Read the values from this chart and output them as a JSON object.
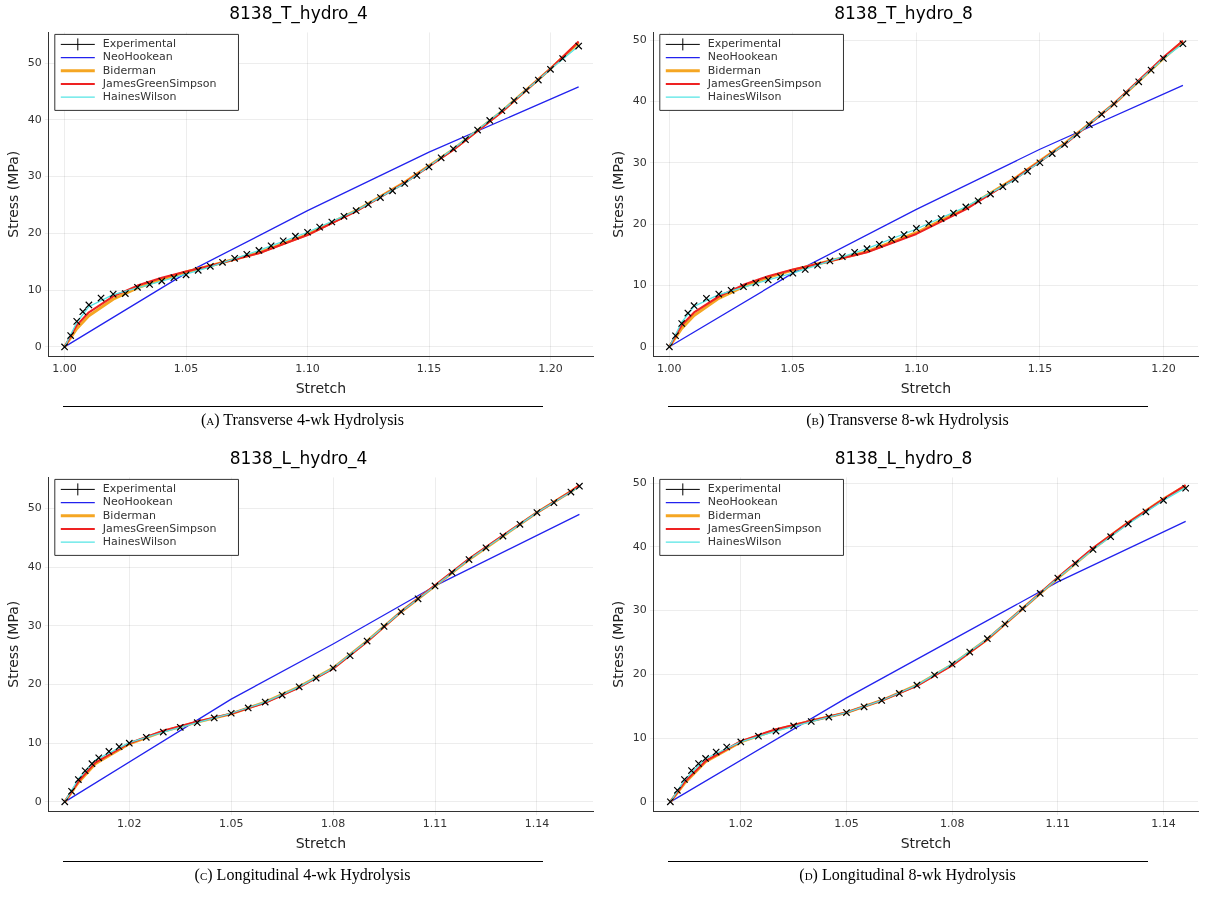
{
  "chart_data": [
    {
      "type": "line",
      "title": "8138_T_hydro_4",
      "xlabel": "Stretch",
      "ylabel": "Stress (MPa)",
      "xlim": [
        0.9935,
        1.2175
      ],
      "ylim": [
        -1.6,
        55.4
      ],
      "xticks": [
        {
          "value": 1,
          "label": "1.00"
        },
        1.05,
        {
          "value": 1.1,
          "label": "1.10"
        },
        1.15,
        {
          "value": 1.2,
          "label": "1.20"
        }
      ],
      "yticks": [
        0,
        10,
        20,
        30,
        40,
        50
      ],
      "grid": true,
      "legend": "top left",
      "line_style": "solid",
      "annotations": [
        "(a) Transverse 4-wk Hydrolysis"
      ],
      "series": [
        {
          "name": "NeoHookean",
          "color": "#2222ee",
          "marker": "none",
          "x": [
            1,
            1.05,
            1.1,
            1.15,
            1.2116
          ],
          "values": [
            0,
            13.0,
            24.0,
            34.3,
            45.8
          ]
        },
        {
          "name": "Biderman",
          "color": "#f5a623",
          "marker": "none",
          "x": [
            1,
            1.005,
            1.01,
            1.02,
            1.03,
            1.04,
            1.05,
            1.06,
            1.08,
            1.1,
            1.12,
            1.14,
            1.16,
            1.18,
            1.2,
            1.2116
          ],
          "values": [
            0,
            3.2,
            5.5,
            8.4,
            10.4,
            11.9,
            13.2,
            14.3,
            16.6,
            19.8,
            24.0,
            29.0,
            34.8,
            41.5,
            49.0,
            53.6
          ]
        },
        {
          "name": "JamesGreenSimpson",
          "color": "#ee2222",
          "marker": "none",
          "x": [
            1,
            1.005,
            1.01,
            1.02,
            1.03,
            1.04,
            1.05,
            1.06,
            1.08,
            1.1,
            1.12,
            1.14,
            1.16,
            1.18,
            1.2,
            1.2116
          ],
          "values": [
            0,
            3.8,
            6.1,
            8.9,
            10.8,
            12.2,
            13.3,
            14.3,
            16.5,
            19.7,
            23.9,
            28.9,
            34.7,
            41.4,
            49.0,
            53.8
          ]
        },
        {
          "name": "HainesWilson",
          "color": "#55e5e5",
          "marker": "none",
          "x": [
            1,
            1.005,
            1.01,
            1.02,
            1.03,
            1.04,
            1.05,
            1.06,
            1.08,
            1.1,
            1.12,
            1.14,
            1.16,
            1.18,
            1.2,
            1.2116
          ],
          "values": [
            0,
            4.3,
            7.1,
            9.2,
            10.4,
            11.6,
            12.8,
            14.1,
            17.0,
            20.2,
            24.0,
            28.8,
            34.9,
            41.6,
            48.9,
            53.0
          ]
        },
        {
          "name": "Experimental",
          "type": "scatter",
          "color": "#000000",
          "marker": "cross",
          "x": [
            1,
            1.0025,
            1.005,
            1.0075,
            1.01,
            1.015,
            1.02,
            1.025,
            1.03,
            1.035,
            1.04,
            1.045,
            1.05,
            1.055,
            1.06,
            1.065,
            1.07,
            1.075,
            1.08,
            1.085,
            1.09,
            1.095,
            1.1,
            1.105,
            1.11,
            1.115,
            1.12,
            1.125,
            1.13,
            1.135,
            1.14,
            1.145,
            1.15,
            1.155,
            1.16,
            1.165,
            1.17,
            1.175,
            1.18,
            1.185,
            1.19,
            1.195,
            1.2,
            1.205,
            1.2116
          ],
          "values": [
            0,
            2,
            4.5,
            6.2,
            7.4,
            8.6,
            9.3,
            9.4,
            10.5,
            11.0,
            11.6,
            12.2,
            12.7,
            13.5,
            14.2,
            14.9,
            15.6,
            16.3,
            17.0,
            17.8,
            18.7,
            19.5,
            20.2,
            21.1,
            22.0,
            23.0,
            24.0,
            25.1,
            26.3,
            27.5,
            28.8,
            30.2,
            31.7,
            33.3,
            34.9,
            36.5,
            38.2,
            39.9,
            41.6,
            43.4,
            45.2,
            47.0,
            48.9,
            50.8,
            53.0
          ]
        }
      ]
    },
    {
      "type": "line",
      "title": "8138_T_hydro_8",
      "xlabel": "Stretch",
      "ylabel": "Stress (MPa)",
      "xlim": [
        0.9937,
        1.214
      ],
      "ylim": [
        -1.5,
        51.25
      ],
      "xticks": [
        {
          "value": 1,
          "label": "1.00"
        },
        1.05,
        {
          "value": 1.1,
          "label": "1.10"
        },
        1.15,
        {
          "value": 1.2,
          "label": "1.20"
        }
      ],
      "yticks": [
        0,
        10,
        20,
        30,
        40,
        50
      ],
      "grid": true,
      "legend": "top left",
      "line_style": "solid",
      "annotations": [
        "(b) Transverse 8-wk Hydrolysis"
      ],
      "series": [
        {
          "name": "NeoHookean",
          "color": "#2222ee",
          "marker": "none",
          "x": [
            1,
            1.05,
            1.1,
            1.15,
            1.2079
          ],
          "values": [
            0,
            12.0,
            22.4,
            32.2,
            42.6
          ]
        },
        {
          "name": "Biderman",
          "color": "#f5a623",
          "marker": "none",
          "x": [
            1,
            1.005,
            1.01,
            1.02,
            1.03,
            1.04,
            1.05,
            1.06,
            1.08,
            1.1,
            1.12,
            1.14,
            1.16,
            1.18,
            1.2,
            1.2079
          ],
          "values": [
            0,
            3.0,
            5.1,
            7.9,
            9.8,
            11.3,
            12.5,
            13.5,
            15.5,
            18.6,
            22.6,
            27.5,
            33.1,
            39.6,
            47.0,
            49.8
          ]
        },
        {
          "name": "JamesGreenSimpson",
          "color": "#ee2222",
          "marker": "none",
          "x": [
            1,
            1.005,
            1.01,
            1.02,
            1.03,
            1.04,
            1.05,
            1.06,
            1.08,
            1.1,
            1.12,
            1.14,
            1.16,
            1.18,
            1.2,
            1.2079
          ],
          "values": [
            0,
            3.5,
            5.6,
            8.2,
            10.1,
            11.5,
            12.6,
            13.5,
            15.4,
            18.4,
            22.4,
            27.4,
            33.0,
            39.6,
            47.2,
            49.9
          ]
        },
        {
          "name": "HainesWilson",
          "color": "#55e5e5",
          "marker": "none",
          "x": [
            1,
            1.005,
            1.01,
            1.02,
            1.03,
            1.04,
            1.05,
            1.06,
            1.08,
            1.1,
            1.12,
            1.14,
            1.16,
            1.18,
            1.2,
            1.2079
          ],
          "values": [
            0,
            4.0,
            6.6,
            8.5,
            9.7,
            10.9,
            12.0,
            13.3,
            16.0,
            19.2,
            22.8,
            27.3,
            33.0,
            39.6,
            47.0,
            49.4
          ]
        },
        {
          "name": "Experimental",
          "type": "scatter",
          "color": "#000000",
          "marker": "cross",
          "x": [
            1,
            1.0025,
            1.005,
            1.0075,
            1.01,
            1.015,
            1.02,
            1.025,
            1.03,
            1.035,
            1.04,
            1.045,
            1.05,
            1.055,
            1.06,
            1.065,
            1.07,
            1.075,
            1.08,
            1.085,
            1.09,
            1.095,
            1.1,
            1.105,
            1.11,
            1.115,
            1.12,
            1.125,
            1.13,
            1.135,
            1.14,
            1.145,
            1.15,
            1.155,
            1.16,
            1.165,
            1.17,
            1.175,
            1.18,
            1.185,
            1.19,
            1.195,
            1.2,
            1.2079
          ],
          "values": [
            0,
            1.8,
            3.8,
            5.5,
            6.7,
            7.9,
            8.6,
            9.2,
            9.8,
            10.4,
            10.9,
            11.4,
            12.0,
            12.6,
            13.3,
            14.0,
            14.7,
            15.4,
            16.0,
            16.7,
            17.5,
            18.3,
            19.3,
            20.1,
            20.9,
            21.8,
            22.8,
            23.8,
            24.9,
            26.1,
            27.3,
            28.6,
            30.0,
            31.5,
            33.0,
            34.6,
            36.2,
            37.9,
            39.6,
            41.4,
            43.2,
            45.1,
            47.0,
            49.4
          ]
        }
      ]
    },
    {
      "type": "line",
      "title": "8138_L_hydro_4",
      "xlabel": "Stretch",
      "ylabel": "Stress (MPa)",
      "xlim": [
        0.9963,
        1.1565
      ],
      "ylim": [
        -1.56,
        55.3
      ],
      "xticks": [
        1.02,
        1.05,
        1.08,
        1.11,
        1.14
      ],
      "yticks": [
        0,
        10,
        20,
        30,
        40,
        50
      ],
      "grid": true,
      "legend": "top left",
      "line_style": "solid",
      "annotations": [
        "(c) Longitudinal 4-wk Hydrolysis"
      ],
      "series": [
        {
          "name": "NeoHookean",
          "color": "#2222ee",
          "marker": "none",
          "x": [
            1.001,
            1.05,
            1.08,
            1.11,
            1.1525
          ],
          "values": [
            0,
            17.5,
            26.9,
            36.8,
            49.0
          ]
        },
        {
          "name": "Biderman",
          "color": "#f5a623",
          "marker": "none",
          "x": [
            1.001,
            1.005,
            1.01,
            1.02,
            1.03,
            1.04,
            1.05,
            1.06,
            1.07,
            1.08,
            1.09,
            1.1,
            1.11,
            1.12,
            1.13,
            1.14,
            1.15,
            1.1525
          ],
          "values": [
            0,
            3.3,
            6.5,
            9.9,
            12.0,
            13.6,
            15.0,
            17.0,
            19.6,
            22.8,
            27.4,
            32.4,
            36.8,
            41.3,
            45.3,
            49.3,
            52.9,
            53.9
          ]
        },
        {
          "name": "JamesGreenSimpson",
          "color": "#ee2222",
          "marker": "none",
          "x": [
            1.001,
            1.005,
            1.01,
            1.02,
            1.03,
            1.04,
            1.05,
            1.06,
            1.07,
            1.08,
            1.09,
            1.1,
            1.11,
            1.12,
            1.13,
            1.14,
            1.15,
            1.1525
          ],
          "values": [
            0,
            3.5,
            6.7,
            10.0,
            12.1,
            13.7,
            15.0,
            16.9,
            19.5,
            22.7,
            27.3,
            32.4,
            36.9,
            41.4,
            45.4,
            49.3,
            52.9,
            54.0
          ]
        },
        {
          "name": "HainesWilson",
          "color": "#55e5e5",
          "marker": "none",
          "x": [
            1.001,
            1.005,
            1.01,
            1.02,
            1.03,
            1.04,
            1.05,
            1.06,
            1.07,
            1.08,
            1.09,
            1.1,
            1.11,
            1.12,
            1.13,
            1.14,
            1.15,
            1.1525
          ],
          "values": [
            0,
            3.9,
            7.1,
            10.1,
            11.9,
            13.5,
            15.1,
            17.0,
            19.6,
            22.8,
            27.4,
            32.4,
            36.8,
            41.3,
            45.3,
            49.3,
            52.8,
            53.7
          ]
        },
        {
          "name": "Experimental",
          "type": "scatter",
          "color": "#000000",
          "marker": "cross",
          "x": [
            1.001,
            1.003,
            1.005,
            1.007,
            1.009,
            1.011,
            1.014,
            1.017,
            1.02,
            1.025,
            1.03,
            1.035,
            1.04,
            1.045,
            1.05,
            1.055,
            1.06,
            1.065,
            1.07,
            1.075,
            1.08,
            1.085,
            1.09,
            1.095,
            1.1,
            1.105,
            1.11,
            1.115,
            1.12,
            1.125,
            1.13,
            1.135,
            1.14,
            1.145,
            1.15,
            1.1525
          ],
          "values": [
            0,
            1.8,
            3.8,
            5.3,
            6.5,
            7.5,
            8.6,
            9.4,
            10.0,
            11.0,
            11.9,
            12.7,
            13.5,
            14.3,
            15.1,
            16.0,
            17.0,
            18.2,
            19.6,
            21.1,
            22.8,
            24.9,
            27.4,
            29.9,
            32.4,
            34.6,
            36.8,
            39.1,
            41.3,
            43.3,
            45.3,
            47.3,
            49.3,
            51.0,
            52.8,
            53.8
          ]
        }
      ]
    },
    {
      "type": "line",
      "title": "8138_L_hydro_8",
      "xlabel": "Stretch",
      "ylabel": "Stress (MPa)",
      "xlim": [
        0.9953,
        1.1498
      ],
      "ylim": [
        -1.44,
        50.9
      ],
      "xticks": [
        1.02,
        1.05,
        1.08,
        1.11,
        1.14
      ],
      "yticks": [
        0,
        10,
        20,
        30,
        40,
        50
      ],
      "grid": true,
      "legend": "top left",
      "line_style": "solid",
      "annotations": [
        "(d) Longitudinal 8-wk Hydrolysis"
      ],
      "series": [
        {
          "name": "NeoHookean",
          "color": "#2222ee",
          "marker": "none",
          "x": [
            1,
            1.05,
            1.08,
            1.11,
            1.1463
          ],
          "values": [
            0,
            16.3,
            25.4,
            34.5,
            44.0
          ]
        },
        {
          "name": "Biderman",
          "color": "#f5a623",
          "marker": "none",
          "x": [
            1,
            1.004,
            1.01,
            1.02,
            1.03,
            1.04,
            1.05,
            1.06,
            1.07,
            1.08,
            1.09,
            1.1,
            1.11,
            1.12,
            1.13,
            1.14,
            1.1463
          ],
          "values": [
            0,
            2.9,
            6.3,
            9.4,
            11.3,
            12.7,
            14.0,
            15.9,
            18.3,
            21.5,
            25.5,
            30.3,
            35.1,
            39.7,
            43.8,
            47.5,
            49.6
          ]
        },
        {
          "name": "JamesGreenSimpson",
          "color": "#ee2222",
          "marker": "none",
          "x": [
            1,
            1.004,
            1.01,
            1.02,
            1.03,
            1.04,
            1.05,
            1.06,
            1.07,
            1.08,
            1.09,
            1.1,
            1.11,
            1.12,
            1.13,
            1.14,
            1.1463
          ],
          "values": [
            0,
            3.1,
            6.4,
            9.5,
            11.4,
            12.7,
            14.0,
            15.9,
            18.2,
            21.4,
            25.5,
            30.3,
            35.2,
            39.8,
            43.8,
            47.5,
            49.7
          ]
        },
        {
          "name": "HainesWilson",
          "color": "#55e5e5",
          "marker": "none",
          "x": [
            1,
            1.004,
            1.01,
            1.02,
            1.03,
            1.04,
            1.05,
            1.06,
            1.07,
            1.08,
            1.09,
            1.1,
            1.11,
            1.12,
            1.13,
            1.14,
            1.1463
          ],
          "values": [
            0,
            3.4,
            6.8,
            9.4,
            11.1,
            12.6,
            14.0,
            15.9,
            18.3,
            21.6,
            25.6,
            30.3,
            35.1,
            39.6,
            43.6,
            47.3,
            49.3
          ]
        },
        {
          "name": "Experimental",
          "type": "scatter",
          "color": "#000000",
          "marker": "cross",
          "x": [
            1,
            1.002,
            1.004,
            1.006,
            1.008,
            1.01,
            1.013,
            1.016,
            1.02,
            1.025,
            1.03,
            1.035,
            1.04,
            1.045,
            1.05,
            1.055,
            1.06,
            1.065,
            1.07,
            1.075,
            1.08,
            1.085,
            1.09,
            1.095,
            1.1,
            1.105,
            1.11,
            1.115,
            1.12,
            1.125,
            1.13,
            1.135,
            1.14,
            1.1463
          ],
          "values": [
            0,
            1.8,
            3.5,
            4.9,
            6.0,
            6.8,
            7.8,
            8.6,
            9.4,
            10.3,
            11.1,
            11.9,
            12.6,
            13.3,
            14.0,
            14.9,
            15.9,
            17.0,
            18.3,
            19.9,
            21.6,
            23.5,
            25.6,
            27.9,
            30.3,
            32.7,
            35.1,
            37.4,
            39.6,
            41.6,
            43.6,
            45.5,
            47.3,
            49.2
          ]
        }
      ]
    }
  ]
}
